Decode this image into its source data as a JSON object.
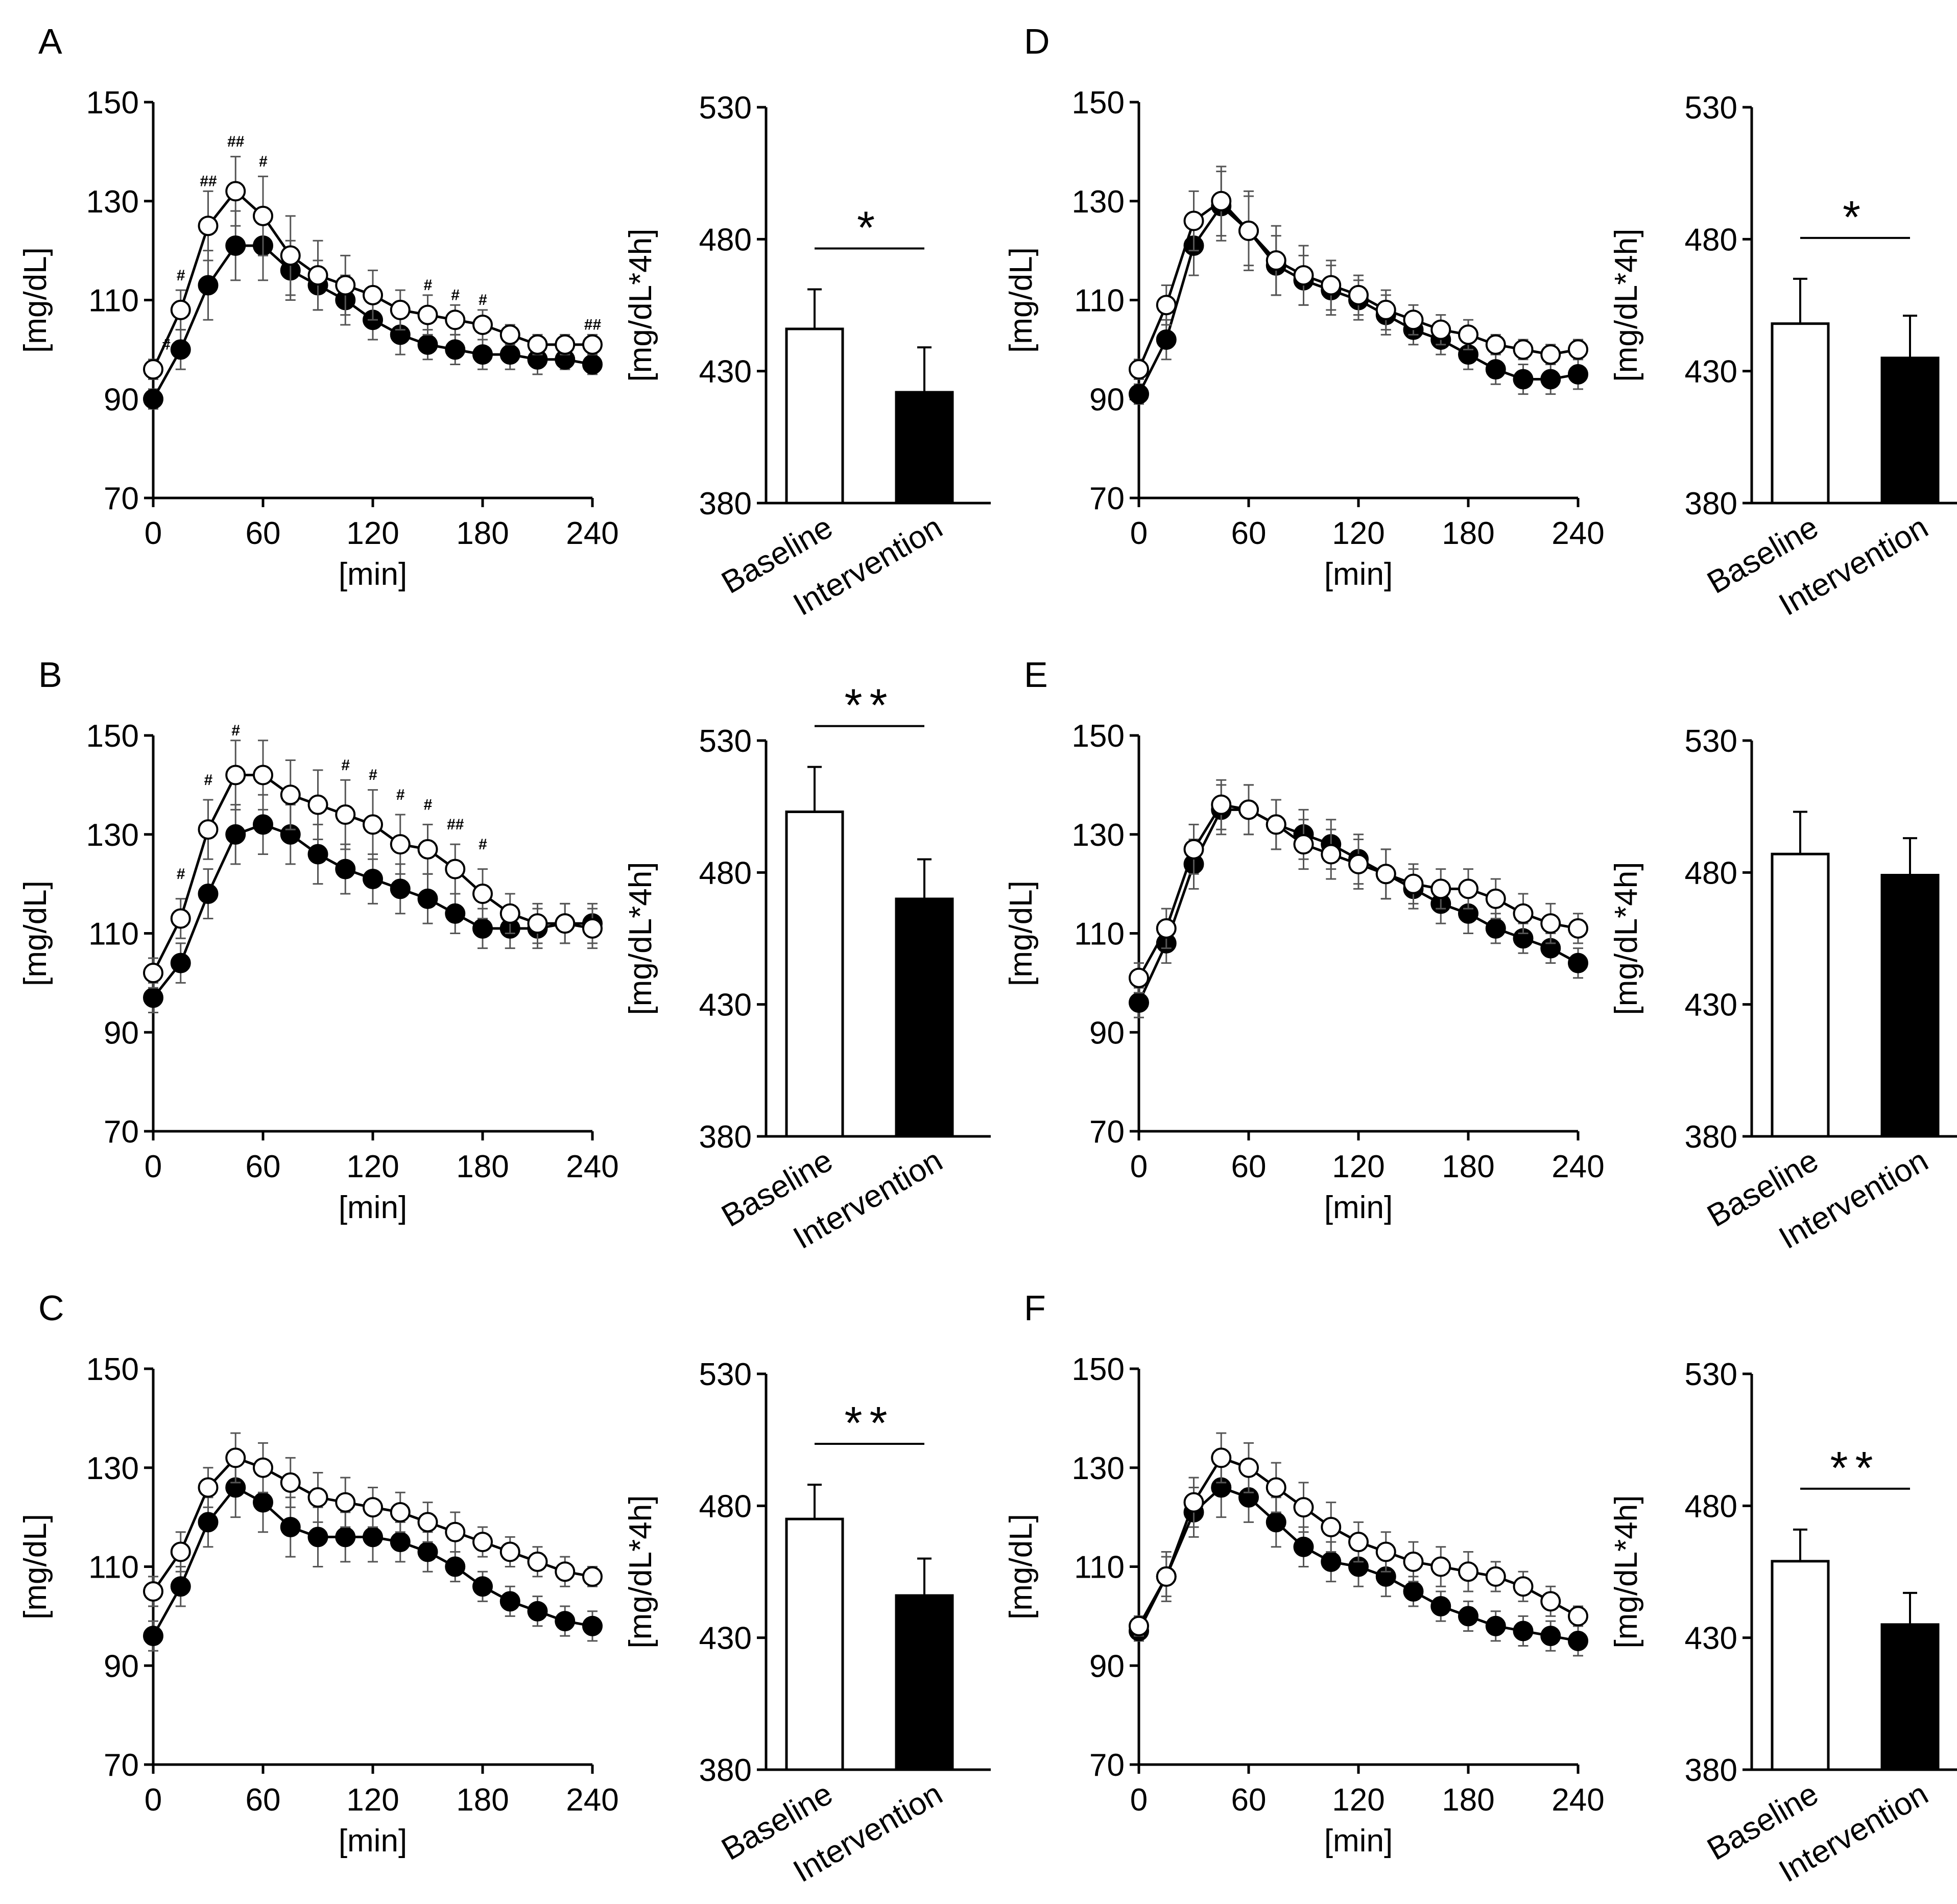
{
  "colors": {
    "foreground": "#000000",
    "background": "#ffffff",
    "baseline_fill": "#ffffff",
    "intervention_fill": "#000000"
  },
  "legend_names": {
    "baseline": "Baseline",
    "intervention": "Intervention"
  },
  "chart_data": [
    {
      "type": "line",
      "panel": "A",
      "title": "A",
      "xlabel": "[min]",
      "ylabel": "[mg/dL]",
      "xlim": [
        0,
        240
      ],
      "ylim": [
        70,
        150
      ],
      "xticks": [
        "0",
        "60",
        "120",
        "180",
        "240"
      ],
      "yticks": [
        "70",
        "90",
        "110",
        "130",
        "150"
      ],
      "x": [
        0,
        15,
        30,
        45,
        60,
        75,
        90,
        105,
        120,
        135,
        150,
        165,
        180,
        195,
        210,
        225,
        240
      ],
      "series": [
        {
          "name": "Baseline",
          "marker": "open-circle",
          "values": [
            96,
            108,
            125,
            132,
            127,
            119,
            115,
            113,
            111,
            108,
            107,
            106,
            105,
            103,
            101,
            101,
            101
          ],
          "errors": [
            2,
            4,
            7,
            7,
            8,
            8,
            7,
            6,
            5,
            4,
            4,
            3,
            3,
            2,
            2,
            2,
            2
          ]
        },
        {
          "name": "Intervention",
          "marker": "filled-circle",
          "values": [
            90,
            100,
            113,
            121,
            121,
            116,
            113,
            110,
            106,
            103,
            101,
            100,
            99,
            99,
            98,
            98,
            97
          ],
          "errors": [
            2,
            4,
            7,
            7,
            7,
            6,
            5,
            5,
            4,
            4,
            3,
            3,
            3,
            3,
            3,
            2,
            2
          ]
        }
      ],
      "annotations": [
        {
          "x": 7,
          "y": 100,
          "text": "#"
        },
        {
          "x": 15,
          "y": 114,
          "text": "#"
        },
        {
          "x": 30,
          "y": 133,
          "text": "##"
        },
        {
          "x": 45,
          "y": 141,
          "text": "##"
        },
        {
          "x": 60,
          "y": 137,
          "text": "#"
        },
        {
          "x": 150,
          "y": 112,
          "text": "#"
        },
        {
          "x": 165,
          "y": 110,
          "text": "#"
        },
        {
          "x": 180,
          "y": 109,
          "text": "#"
        },
        {
          "x": 240,
          "y": 104,
          "text": "##"
        }
      ]
    },
    {
      "type": "bar",
      "panel": "A-AUC",
      "categories": [
        "Baseline",
        "Intervention"
      ],
      "values": [
        446,
        422
      ],
      "errors": [
        15,
        17
      ],
      "ylabel": "[mg/dL*4h]",
      "ylim": [
        380,
        530
      ],
      "yticks": [
        "380",
        "430",
        "480",
        "530"
      ],
      "significance": "*"
    },
    {
      "type": "line",
      "panel": "B",
      "title": "B",
      "xlabel": "[min]",
      "ylabel": "[mg/dL]",
      "xlim": [
        0,
        240
      ],
      "ylim": [
        70,
        150
      ],
      "xticks": [
        "0",
        "60",
        "120",
        "180",
        "240"
      ],
      "yticks": [
        "70",
        "90",
        "110",
        "130",
        "150"
      ],
      "x": [
        0,
        15,
        30,
        45,
        60,
        75,
        90,
        105,
        120,
        135,
        150,
        165,
        180,
        195,
        210,
        225,
        240
      ],
      "series": [
        {
          "name": "Baseline",
          "marker": "open-circle",
          "values": [
            102,
            113,
            131,
            142,
            142,
            138,
            136,
            134,
            132,
            128,
            127,
            123,
            118,
            114,
            112,
            112,
            111
          ],
          "errors": [
            3,
            4,
            6,
            7,
            7,
            7,
            7,
            7,
            7,
            6,
            5,
            5,
            5,
            4,
            4,
            4,
            4
          ]
        },
        {
          "name": "Intervention",
          "marker": "filled-circle",
          "values": [
            97,
            104,
            118,
            130,
            132,
            130,
            126,
            123,
            121,
            119,
            117,
            114,
            111,
            111,
            111,
            112,
            112
          ],
          "errors": [
            3,
            4,
            5,
            6,
            6,
            6,
            6,
            5,
            5,
            5,
            5,
            4,
            4,
            4,
            4,
            4,
            4
          ]
        }
      ],
      "annotations": [
        {
          "x": 15,
          "y": 121,
          "text": "#"
        },
        {
          "x": 30,
          "y": 140,
          "text": "#"
        },
        {
          "x": 45,
          "y": 150,
          "text": "#"
        },
        {
          "x": 105,
          "y": 143,
          "text": "#"
        },
        {
          "x": 120,
          "y": 141,
          "text": "#"
        },
        {
          "x": 135,
          "y": 137,
          "text": "#"
        },
        {
          "x": 150,
          "y": 135,
          "text": "#"
        },
        {
          "x": 165,
          "y": 131,
          "text": "##"
        },
        {
          "x": 180,
          "y": 127,
          "text": "#"
        }
      ]
    },
    {
      "type": "bar",
      "panel": "B-AUC",
      "categories": [
        "Baseline",
        "Intervention"
      ],
      "values": [
        503,
        470
      ],
      "errors": [
        17,
        15
      ],
      "ylabel": "[mg/dL*4h]",
      "ylim": [
        380,
        530
      ],
      "yticks": [
        "380",
        "430",
        "480",
        "530"
      ],
      "significance": "**"
    },
    {
      "type": "line",
      "panel": "C",
      "title": "C",
      "xlabel": "[min]",
      "ylabel": "[mg/dL]",
      "xlim": [
        0,
        240
      ],
      "ylim": [
        70,
        150
      ],
      "xticks": [
        "0",
        "60",
        "120",
        "180",
        "240"
      ],
      "yticks": [
        "70",
        "90",
        "110",
        "130",
        "150"
      ],
      "x": [
        0,
        15,
        30,
        45,
        60,
        75,
        90,
        105,
        120,
        135,
        150,
        165,
        180,
        195,
        210,
        225,
        240
      ],
      "series": [
        {
          "name": "Baseline",
          "marker": "open-circle",
          "values": [
            105,
            113,
            126,
            132,
            130,
            127,
            124,
            123,
            122,
            121,
            119,
            117,
            115,
            113,
            111,
            109,
            108
          ],
          "errors": [
            3,
            4,
            4,
            5,
            5,
            5,
            5,
            5,
            4,
            4,
            4,
            4,
            3,
            3,
            3,
            3,
            2
          ]
        },
        {
          "name": "Intervention",
          "marker": "filled-circle",
          "values": [
            96,
            106,
            119,
            126,
            123,
            118,
            116,
            116,
            116,
            115,
            113,
            110,
            106,
            103,
            101,
            99,
            98
          ],
          "errors": [
            3,
            4,
            5,
            6,
            6,
            6,
            6,
            5,
            5,
            4,
            4,
            3,
            3,
            3,
            3,
            3,
            3
          ]
        }
      ]
    },
    {
      "type": "bar",
      "panel": "C-AUC",
      "categories": [
        "Baseline",
        "Intervention"
      ],
      "values": [
        475,
        446
      ],
      "errors": [
        13,
        14
      ],
      "ylabel": "[mg/dL*4h]",
      "ylim": [
        380,
        530
      ],
      "yticks": [
        "380",
        "430",
        "480",
        "530"
      ],
      "significance": "**"
    },
    {
      "type": "line",
      "panel": "D",
      "title": "D",
      "xlabel": "[min]",
      "ylabel": "[mg/dL]",
      "xlim": [
        0,
        240
      ],
      "ylim": [
        70,
        150
      ],
      "xticks": [
        "0",
        "60",
        "120",
        "180",
        "240"
      ],
      "yticks": [
        "70",
        "90",
        "110",
        "130",
        "150"
      ],
      "x": [
        0,
        15,
        30,
        45,
        60,
        75,
        90,
        105,
        120,
        135,
        150,
        165,
        180,
        195,
        210,
        225,
        240
      ],
      "series": [
        {
          "name": "Baseline",
          "marker": "open-circle",
          "values": [
            96,
            109,
            126,
            130,
            124,
            118,
            115,
            113,
            111,
            108,
            106,
            104,
            103,
            101,
            100,
            99,
            100
          ],
          "errors": [
            2,
            4,
            6,
            7,
            8,
            7,
            6,
            5,
            4,
            4,
            3,
            3,
            3,
            2,
            2,
            2,
            2
          ]
        },
        {
          "name": "Intervention",
          "marker": "filled-circle",
          "values": [
            91,
            102,
            121,
            129,
            124,
            117,
            114,
            112,
            110,
            107,
            104,
            102,
            99,
            96,
            94,
            94,
            95
          ],
          "errors": [
            2,
            4,
            6,
            7,
            7,
            6,
            5,
            5,
            4,
            4,
            3,
            3,
            3,
            3,
            3,
            3,
            3
          ]
        }
      ]
    },
    {
      "type": "bar",
      "panel": "D-AUC",
      "categories": [
        "Baseline",
        "Intervention"
      ],
      "values": [
        448,
        435
      ],
      "errors": [
        17,
        16
      ],
      "ylabel": "[mg/dL*4h]",
      "ylim": [
        380,
        530
      ],
      "yticks": [
        "380",
        "430",
        "480",
        "530"
      ],
      "significance": "*"
    },
    {
      "type": "line",
      "panel": "E",
      "title": "E",
      "xlabel": "[min]",
      "ylabel": "[mg/dL]",
      "xlim": [
        0,
        240
      ],
      "ylim": [
        70,
        150
      ],
      "xticks": [
        "0",
        "60",
        "120",
        "180",
        "240"
      ],
      "yticks": [
        "70",
        "90",
        "110",
        "130",
        "150"
      ],
      "x": [
        0,
        15,
        30,
        45,
        60,
        75,
        90,
        105,
        120,
        135,
        150,
        165,
        180,
        195,
        210,
        225,
        240
      ],
      "series": [
        {
          "name": "Baseline",
          "marker": "open-circle",
          "values": [
            101,
            111,
            127,
            136,
            135,
            132,
            128,
            126,
            124,
            122,
            120,
            119,
            119,
            117,
            114,
            112,
            111
          ],
          "errors": [
            3,
            4,
            5,
            5,
            5,
            5,
            5,
            5,
            5,
            5,
            4,
            4,
            4,
            4,
            4,
            4,
            3
          ]
        },
        {
          "name": "Intervention",
          "marker": "filled-circle",
          "values": [
            96,
            108,
            124,
            135,
            135,
            132,
            130,
            128,
            125,
            122,
            119,
            116,
            114,
            111,
            109,
            107,
            104
          ],
          "errors": [
            3,
            4,
            5,
            5,
            5,
            5,
            5,
            5,
            5,
            5,
            4,
            4,
            4,
            3,
            3,
            3,
            3
          ]
        }
      ]
    },
    {
      "type": "bar",
      "panel": "E-AUC",
      "categories": [
        "Baseline",
        "Intervention"
      ],
      "values": [
        487,
        479
      ],
      "errors": [
        16,
        14
      ],
      "ylabel": "[mg/dL*4h]",
      "ylim": [
        380,
        530
      ],
      "yticks": [
        "380",
        "430",
        "480",
        "530"
      ],
      "significance": ""
    },
    {
      "type": "line",
      "panel": "F",
      "title": "F",
      "xlabel": "[min]",
      "ylabel": "[mg/dL]",
      "xlim": [
        0,
        240
      ],
      "ylim": [
        70,
        150
      ],
      "xticks": [
        "0",
        "60",
        "120",
        "180",
        "240"
      ],
      "yticks": [
        "70",
        "90",
        "110",
        "130",
        "150"
      ],
      "x": [
        0,
        15,
        30,
        45,
        60,
        75,
        90,
        105,
        120,
        135,
        150,
        165,
        180,
        195,
        210,
        225,
        240
      ],
      "series": [
        {
          "name": "Baseline",
          "marker": "open-circle",
          "values": [
            98,
            108,
            123,
            132,
            130,
            126,
            122,
            118,
            115,
            113,
            111,
            110,
            109,
            108,
            106,
            103,
            100
          ],
          "errors": [
            2,
            5,
            5,
            5,
            5,
            5,
            5,
            5,
            4,
            4,
            4,
            4,
            4,
            3,
            3,
            3,
            2
          ]
        },
        {
          "name": "Intervention",
          "marker": "filled-circle",
          "values": [
            97,
            108,
            121,
            126,
            124,
            119,
            114,
            111,
            110,
            108,
            105,
            102,
            100,
            98,
            97,
            96,
            95
          ],
          "errors": [
            2,
            4,
            5,
            6,
            5,
            5,
            4,
            4,
            4,
            4,
            3,
            3,
            3,
            3,
            3,
            3,
            3
          ]
        }
      ]
    },
    {
      "type": "bar",
      "panel": "F-AUC",
      "categories": [
        "Baseline",
        "Intervention"
      ],
      "values": [
        459,
        435
      ],
      "errors": [
        12,
        12
      ],
      "ylabel": "[mg/dL*4h]",
      "ylim": [
        380,
        530
      ],
      "yticks": [
        "380",
        "430",
        "480",
        "530"
      ],
      "significance": "**"
    }
  ]
}
